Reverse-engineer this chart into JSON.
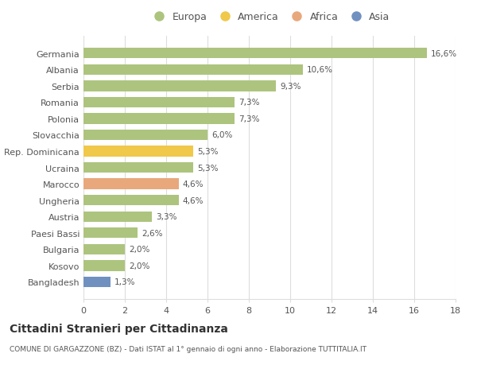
{
  "categories": [
    "Germania",
    "Albania",
    "Serbia",
    "Romania",
    "Polonia",
    "Slovacchia",
    "Rep. Dominicana",
    "Ucraina",
    "Marocco",
    "Ungheria",
    "Austria",
    "Paesi Bassi",
    "Bulgaria",
    "Kosovo",
    "Bangladesh"
  ],
  "values": [
    16.6,
    10.6,
    9.3,
    7.3,
    7.3,
    6.0,
    5.3,
    5.3,
    4.6,
    4.6,
    3.3,
    2.6,
    2.0,
    2.0,
    1.3
  ],
  "bar_colors": [
    "#adc47e",
    "#adc47e",
    "#adc47e",
    "#adc47e",
    "#adc47e",
    "#adc47e",
    "#f0c84a",
    "#adc47e",
    "#e8a87c",
    "#adc47e",
    "#adc47e",
    "#adc47e",
    "#adc47e",
    "#adc47e",
    "#7090c0"
  ],
  "labels": [
    "16,6%",
    "10,6%",
    "9,3%",
    "7,3%",
    "7,3%",
    "6,0%",
    "5,3%",
    "5,3%",
    "4,6%",
    "4,6%",
    "3,3%",
    "2,6%",
    "2,0%",
    "2,0%",
    "1,3%"
  ],
  "legend": [
    {
      "label": "Europa",
      "color": "#adc47e"
    },
    {
      "label": "America",
      "color": "#f0c84a"
    },
    {
      "label": "Africa",
      "color": "#e8a87c"
    },
    {
      "label": "Asia",
      "color": "#7090c0"
    }
  ],
  "title": "Cittadini Stranieri per Cittadinanza",
  "subtitle": "COMUNE DI GARGAZZONE (BZ) - Dati ISTAT al 1° gennaio di ogni anno - Elaborazione TUTTITALIA.IT",
  "xlim": [
    0,
    18
  ],
  "xticks": [
    0,
    2,
    4,
    6,
    8,
    10,
    12,
    14,
    16,
    18
  ],
  "background_color": "#ffffff",
  "grid_color": "#dddddd"
}
